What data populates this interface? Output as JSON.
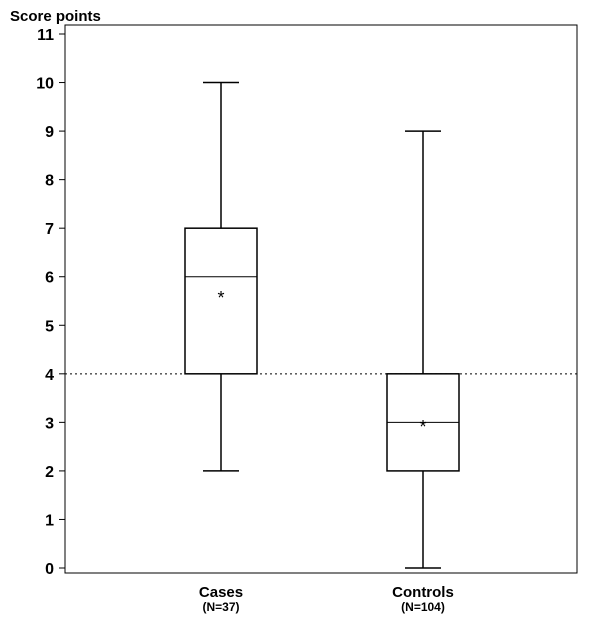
{
  "chart_data": {
    "type": "box",
    "ylabel": "Score points",
    "xlabel": "",
    "title": "",
    "ylim": [
      0,
      11
    ],
    "yticks": [
      0,
      1,
      2,
      3,
      4,
      5,
      6,
      7,
      8,
      9,
      10,
      11
    ],
    "reference_line": {
      "y": 4,
      "style": "dotted"
    },
    "groups": [
      {
        "label": "Cases",
        "n_label": "(N=37)",
        "min": 2,
        "q1": 4,
        "median": 6,
        "q3": 7,
        "max": 10,
        "mean": 5.6
      },
      {
        "label": "Controls",
        "n_label": "(N=104)",
        "min": 0,
        "q1": 2,
        "median": 3,
        "q3": 4,
        "max": 9,
        "mean": 2.95
      }
    ],
    "mean_marker": "*",
    "grid": false,
    "colors": {
      "line": "#000000",
      "background": "#ffffff"
    }
  }
}
